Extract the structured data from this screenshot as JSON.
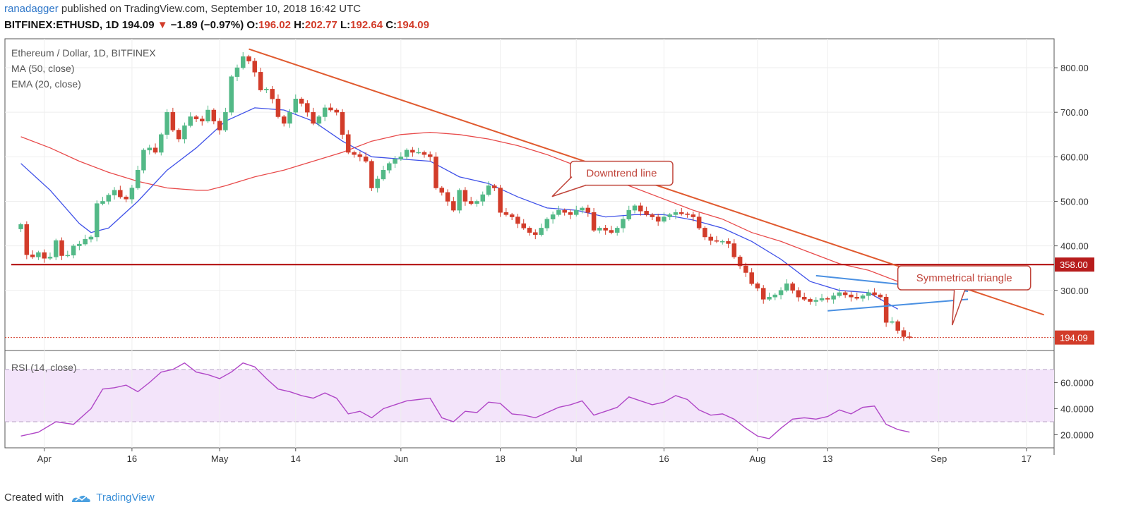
{
  "header": {
    "author": "ranadagger",
    "published_text": "published on TradingView.com, September 10, 2018 16:42 UTC",
    "symbol": "BITFINEX:ETHUSD, 1D",
    "last": "194.09",
    "change": "−1.89 (−0.97%)",
    "o_label": "O:",
    "o_value": "196.02",
    "h_label": "H:",
    "h_value": "202.77",
    "l_label": "L:",
    "l_value": "192.64",
    "c_label": "C:",
    "c_value": "194.09"
  },
  "footer": {
    "created_with": "Created with",
    "brand": "TradingView"
  },
  "colors": {
    "up": "#53b987",
    "down": "#d23c2a",
    "ema": "#3f51e8",
    "ma": "#e84a4a",
    "downtrend": "#e05a2f",
    "support": "#b71c1c",
    "triangle": "#4a90e2",
    "rsi": "#b047c7",
    "rsi_band": "#f3e4fa"
  },
  "chart_data": [
    {
      "type": "candlestick",
      "title": "Ethereum / Dollar, 1D, BITFINEX",
      "indicators": [
        "MA (50, close)",
        "EMA (20, close)"
      ],
      "x_ticks": [
        "Apr",
        "16",
        "May",
        "14",
        "Jun",
        "18",
        "Jul",
        "16",
        "Aug",
        "13",
        "Sep",
        "17"
      ],
      "y_ticks": [
        "800.00",
        "700.00",
        "600.00",
        "500.00",
        "400.00",
        "300.00"
      ],
      "ylim": [
        165,
        865
      ],
      "x_range": [
        "2018-03-26",
        "2018-09-20"
      ],
      "grid": true,
      "support_level": 358,
      "support_label": "358.00",
      "last_price": 194.09,
      "last_price_label": "194.09",
      "annotations": [
        {
          "text": "Downtrend line",
          "x": "2018-06-30",
          "y": 590
        },
        {
          "text": "Symmetrical triangle",
          "x": "2018-08-25",
          "y": 355
        }
      ],
      "downtrend_line": [
        {
          "x": "2018-05-06",
          "y": 842
        },
        {
          "x": "2018-09-19",
          "y": 245
        }
      ],
      "triangle_upper": [
        {
          "x": "2018-08-11",
          "y": 333
        },
        {
          "x": "2018-09-06",
          "y": 298
        }
      ],
      "triangle_lower": [
        {
          "x": "2018-08-13",
          "y": 254
        },
        {
          "x": "2018-09-06",
          "y": 280
        }
      ],
      "close": [
        [
          0,
          448
        ],
        [
          1,
          380
        ],
        [
          2,
          375
        ],
        [
          3,
          385
        ],
        [
          4,
          372
        ],
        [
          5,
          375
        ],
        [
          6,
          412
        ],
        [
          7,
          378
        ],
        [
          8,
          379
        ],
        [
          9,
          400
        ],
        [
          10,
          404
        ],
        [
          11,
          415
        ],
        [
          12,
          420
        ],
        [
          13,
          495
        ],
        [
          14,
          500
        ],
        [
          15,
          514
        ],
        [
          16,
          525
        ],
        [
          17,
          510
        ],
        [
          18,
          505
        ],
        [
          19,
          530
        ],
        [
          20,
          570
        ],
        [
          21,
          615
        ],
        [
          22,
          620
        ],
        [
          23,
          610
        ],
        [
          24,
          650
        ],
        [
          25,
          700
        ],
        [
          26,
          660
        ],
        [
          27,
          640
        ],
        [
          28,
          670
        ],
        [
          29,
          690
        ],
        [
          30,
          685
        ],
        [
          31,
          680
        ],
        [
          32,
          705
        ],
        [
          33,
          680
        ],
        [
          34,
          660
        ],
        [
          35,
          700
        ],
        [
          36,
          780
        ],
        [
          37,
          800
        ],
        [
          38,
          825
        ],
        [
          39,
          815
        ],
        [
          40,
          790
        ],
        [
          41,
          750
        ],
        [
          42,
          752
        ],
        [
          43,
          730
        ],
        [
          44,
          690
        ],
        [
          45,
          675
        ],
        [
          46,
          700
        ],
        [
          47,
          730
        ],
        [
          48,
          720
        ],
        [
          49,
          700
        ],
        [
          50,
          675
        ],
        [
          51,
          690
        ],
        [
          52,
          710
        ],
        [
          53,
          705
        ],
        [
          54,
          700
        ],
        [
          55,
          650
        ],
        [
          56,
          610
        ],
        [
          57,
          605
        ],
        [
          58,
          600
        ],
        [
          59,
          590
        ],
        [
          60,
          530
        ],
        [
          61,
          550
        ],
        [
          62,
          570
        ],
        [
          63,
          585
        ],
        [
          64,
          595
        ],
        [
          65,
          600
        ],
        [
          66,
          615
        ],
        [
          67,
          610
        ],
        [
          68,
          610
        ],
        [
          69,
          605
        ],
        [
          70,
          600
        ],
        [
          71,
          530
        ],
        [
          72,
          520
        ],
        [
          73,
          500
        ],
        [
          74,
          480
        ],
        [
          75,
          525
        ],
        [
          76,
          500
        ],
        [
          77,
          495
        ],
        [
          78,
          500
        ],
        [
          79,
          515
        ],
        [
          80,
          535
        ],
        [
          81,
          530
        ],
        [
          82,
          475
        ],
        [
          83,
          470
        ],
        [
          84,
          465
        ],
        [
          85,
          450
        ],
        [
          86,
          440
        ],
        [
          87,
          430
        ],
        [
          88,
          425
        ],
        [
          89,
          440
        ],
        [
          90,
          460
        ],
        [
          91,
          470
        ],
        [
          92,
          480
        ],
        [
          93,
          475
        ],
        [
          94,
          470
        ],
        [
          95,
          480
        ],
        [
          96,
          485
        ],
        [
          97,
          475
        ],
        [
          98,
          435
        ],
        [
          99,
          440
        ],
        [
          100,
          435
        ],
        [
          101,
          430
        ],
        [
          102,
          440
        ],
        [
          103,
          460
        ],
        [
          104,
          480
        ],
        [
          105,
          490
        ],
        [
          106,
          478
        ],
        [
          107,
          470
        ],
        [
          108,
          465
        ],
        [
          109,
          455
        ],
        [
          110,
          465
        ],
        [
          111,
          470
        ],
        [
          112,
          475
        ],
        [
          113,
          472
        ],
        [
          114,
          470
        ],
        [
          115,
          465
        ],
        [
          116,
          440
        ],
        [
          117,
          420
        ],
        [
          118,
          412
        ],
        [
          119,
          410
        ],
        [
          120,
          410
        ],
        [
          121,
          405
        ],
        [
          122,
          375
        ],
        [
          123,
          355
        ],
        [
          124,
          340
        ],
        [
          125,
          315
        ],
        [
          126,
          305
        ],
        [
          127,
          280
        ],
        [
          128,
          285
        ],
        [
          129,
          290
        ],
        [
          130,
          300
        ],
        [
          131,
          315
        ],
        [
          132,
          300
        ],
        [
          133,
          285
        ],
        [
          134,
          280
        ],
        [
          135,
          275
        ],
        [
          136,
          278
        ],
        [
          137,
          282
        ],
        [
          138,
          280
        ],
        [
          139,
          288
        ],
        [
          140,
          295
        ],
        [
          141,
          290
        ],
        [
          142,
          285
        ],
        [
          143,
          282
        ],
        [
          144,
          288
        ],
        [
          145,
          295
        ],
        [
          146,
          290
        ],
        [
          147,
          285
        ],
        [
          148,
          228
        ],
        [
          149,
          230
        ],
        [
          150,
          210
        ],
        [
          151,
          196
        ],
        [
          152,
          194.09
        ]
      ],
      "ma50_close": [
        [
          0,
          645
        ],
        [
          5,
          620
        ],
        [
          10,
          590
        ],
        [
          15,
          565
        ],
        [
          20,
          545
        ],
        [
          25,
          530
        ],
        [
          30,
          525
        ],
        [
          32,
          525
        ],
        [
          35,
          535
        ],
        [
          40,
          555
        ],
        [
          45,
          570
        ],
        [
          50,
          590
        ],
        [
          55,
          610
        ],
        [
          60,
          635
        ],
        [
          65,
          650
        ],
        [
          70,
          655
        ],
        [
          75,
          650
        ],
        [
          80,
          640
        ],
        [
          85,
          625
        ],
        [
          90,
          605
        ],
        [
          95,
          580
        ],
        [
          100,
          555
        ],
        [
          105,
          530
        ],
        [
          110,
          505
        ],
        [
          115,
          480
        ],
        [
          120,
          460
        ],
        [
          125,
          430
        ],
        [
          130,
          410
        ],
        [
          135,
          385
        ],
        [
          140,
          360
        ],
        [
          145,
          345
        ],
        [
          150,
          320
        ]
      ],
      "ema20_close": [
        [
          0,
          585
        ],
        [
          5,
          525
        ],
        [
          10,
          450
        ],
        [
          12,
          430
        ],
        [
          15,
          440
        ],
        [
          20,
          500
        ],
        [
          25,
          570
        ],
        [
          30,
          620
        ],
        [
          35,
          680
        ],
        [
          40,
          710
        ],
        [
          45,
          705
        ],
        [
          50,
          680
        ],
        [
          55,
          635
        ],
        [
          60,
          600
        ],
        [
          65,
          595
        ],
        [
          70,
          590
        ],
        [
          75,
          555
        ],
        [
          80,
          540
        ],
        [
          85,
          510
        ],
        [
          90,
          485
        ],
        [
          95,
          480
        ],
        [
          100,
          465
        ],
        [
          105,
          470
        ],
        [
          110,
          470
        ],
        [
          115,
          458
        ],
        [
          120,
          440
        ],
        [
          125,
          410
        ],
        [
          130,
          370
        ],
        [
          135,
          320
        ],
        [
          140,
          300
        ],
        [
          145,
          295
        ],
        [
          150,
          258
        ]
      ]
    },
    {
      "type": "line",
      "title": "RSI (14, close)",
      "y_ticks": [
        "60.0000",
        "40.0000",
        "20.0000"
      ],
      "ylim": [
        10,
        84
      ],
      "band": [
        30,
        70
      ],
      "values": [
        [
          0,
          19
        ],
        [
          3,
          22
        ],
        [
          6,
          30
        ],
        [
          9,
          28
        ],
        [
          12,
          40
        ],
        [
          14,
          55
        ],
        [
          16,
          56
        ],
        [
          18,
          58
        ],
        [
          20,
          53
        ],
        [
          22,
          60
        ],
        [
          24,
          68
        ],
        [
          26,
          70
        ],
        [
          28,
          75
        ],
        [
          30,
          68
        ],
        [
          32,
          66
        ],
        [
          34,
          63
        ],
        [
          36,
          68
        ],
        [
          38,
          75
        ],
        [
          40,
          72
        ],
        [
          42,
          63
        ],
        [
          44,
          55
        ],
        [
          46,
          53
        ],
        [
          48,
          50
        ],
        [
          50,
          48
        ],
        [
          52,
          52
        ],
        [
          54,
          48
        ],
        [
          56,
          36
        ],
        [
          58,
          38
        ],
        [
          60,
          33
        ],
        [
          62,
          40
        ],
        [
          64,
          43
        ],
        [
          66,
          46
        ],
        [
          68,
          47
        ],
        [
          70,
          48
        ],
        [
          72,
          33
        ],
        [
          74,
          30
        ],
        [
          76,
          38
        ],
        [
          78,
          37
        ],
        [
          80,
          45
        ],
        [
          82,
          44
        ],
        [
          84,
          36
        ],
        [
          86,
          35
        ],
        [
          88,
          33
        ],
        [
          90,
          37
        ],
        [
          92,
          41
        ],
        [
          94,
          43
        ],
        [
          96,
          46
        ],
        [
          98,
          35
        ],
        [
          100,
          38
        ],
        [
          102,
          41
        ],
        [
          104,
          49
        ],
        [
          106,
          46
        ],
        [
          108,
          43
        ],
        [
          110,
          45
        ],
        [
          112,
          50
        ],
        [
          114,
          47
        ],
        [
          116,
          39
        ],
        [
          118,
          35
        ],
        [
          120,
          36
        ],
        [
          122,
          32
        ],
        [
          124,
          25
        ],
        [
          126,
          19
        ],
        [
          128,
          17
        ],
        [
          130,
          25
        ],
        [
          132,
          32
        ],
        [
          134,
          33
        ],
        [
          136,
          32
        ],
        [
          138,
          34
        ],
        [
          140,
          39
        ],
        [
          142,
          36
        ],
        [
          144,
          41
        ],
        [
          146,
          42
        ],
        [
          148,
          28
        ],
        [
          150,
          24
        ],
        [
          152,
          22
        ]
      ]
    }
  ]
}
